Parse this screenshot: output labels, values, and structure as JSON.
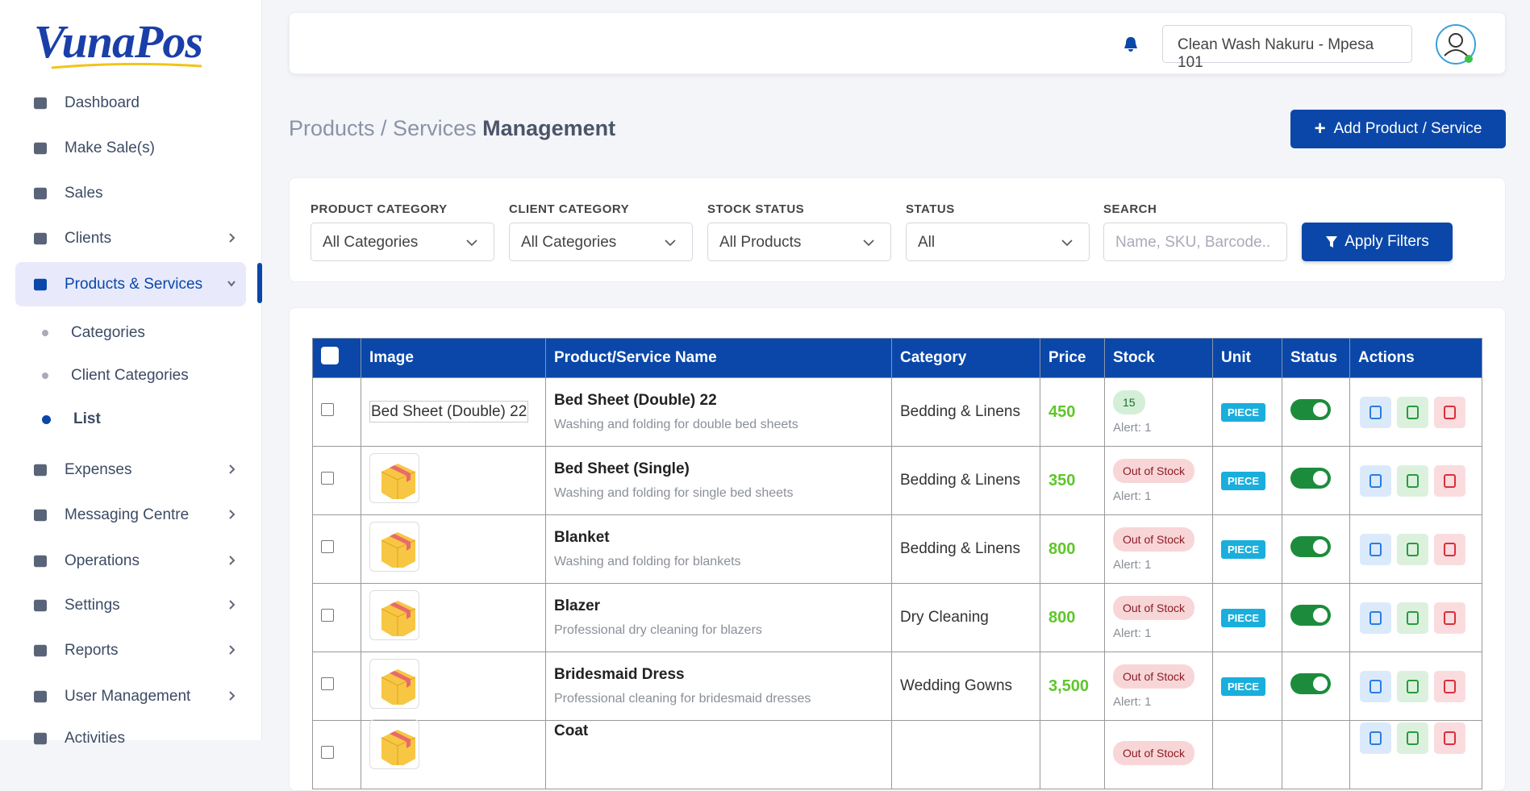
{
  "sidebar": {
    "logo": "VunaPos",
    "menu": [
      "Dashboard",
      "Make Sale(s)",
      "Sales",
      "Clients",
      "Products & Services",
      "Categories",
      "Client Categories",
      "List",
      "Expenses",
      "Messaging Centre",
      "Operations",
      "Settings",
      "Reports",
      "User Management",
      "Activities"
    ]
  },
  "header": {
    "store": "Clean Wash Nakuru - Mpesa 101"
  },
  "page": {
    "title_light": "Products / Services",
    "title_bold": "Management",
    "add_button": "Add Product / Service"
  },
  "filters": {
    "fields": [
      {
        "label": "PRODUCT CATEGORY",
        "value": "All Categories"
      },
      {
        "label": "CLIENT CATEGORY",
        "value": "All Categories"
      },
      {
        "label": "STOCK STATUS",
        "value": "All Products"
      },
      {
        "label": "STATUS",
        "value": "All"
      }
    ],
    "search_label": "SEARCH",
    "search_placeholder": "Name, SKU, Barcode..",
    "apply": "Apply Filters"
  },
  "table": {
    "columns": [
      "Image",
      "Product/Service Name",
      "Category",
      "Price",
      "Stock",
      "Unit",
      "Status",
      "Actions"
    ],
    "rows": [
      {
        "image_alt": "Bed Sheet (Double) 22",
        "name": "Bed Sheet (Double) 22",
        "description": "Washing and folding for double bed sheets",
        "category": "Bedding & Linens",
        "price": "450",
        "stock": "15",
        "alert": "Alert: 1",
        "unit": "PIECE"
      },
      {
        "name": "Bed Sheet (Single)",
        "description": "Washing and folding for single bed sheets",
        "category": "Bedding & Linens",
        "price": "350",
        "stock": "Out of Stock",
        "alert": "Alert: 1",
        "unit": "PIECE"
      },
      {
        "name": "Blanket",
        "description": "Washing and folding for blankets",
        "category": "Bedding & Linens",
        "price": "800",
        "stock": "Out of Stock",
        "alert": "Alert: 1",
        "unit": "PIECE"
      },
      {
        "name": "Blazer",
        "description": "Professional dry cleaning for blazers",
        "category": "Dry Cleaning",
        "price": "800",
        "stock": "Out of Stock",
        "alert": "Alert: 1",
        "unit": "PIECE"
      },
      {
        "name": "Bridesmaid Dress",
        "description": "Professional cleaning for bridesmaid dresses",
        "category": "Wedding Gowns",
        "price": "3,500",
        "stock": "Out of Stock",
        "alert": "Alert: 1",
        "unit": "PIECE"
      },
      {
        "name": "Coat",
        "stock": "Out of Stock"
      }
    ]
  }
}
